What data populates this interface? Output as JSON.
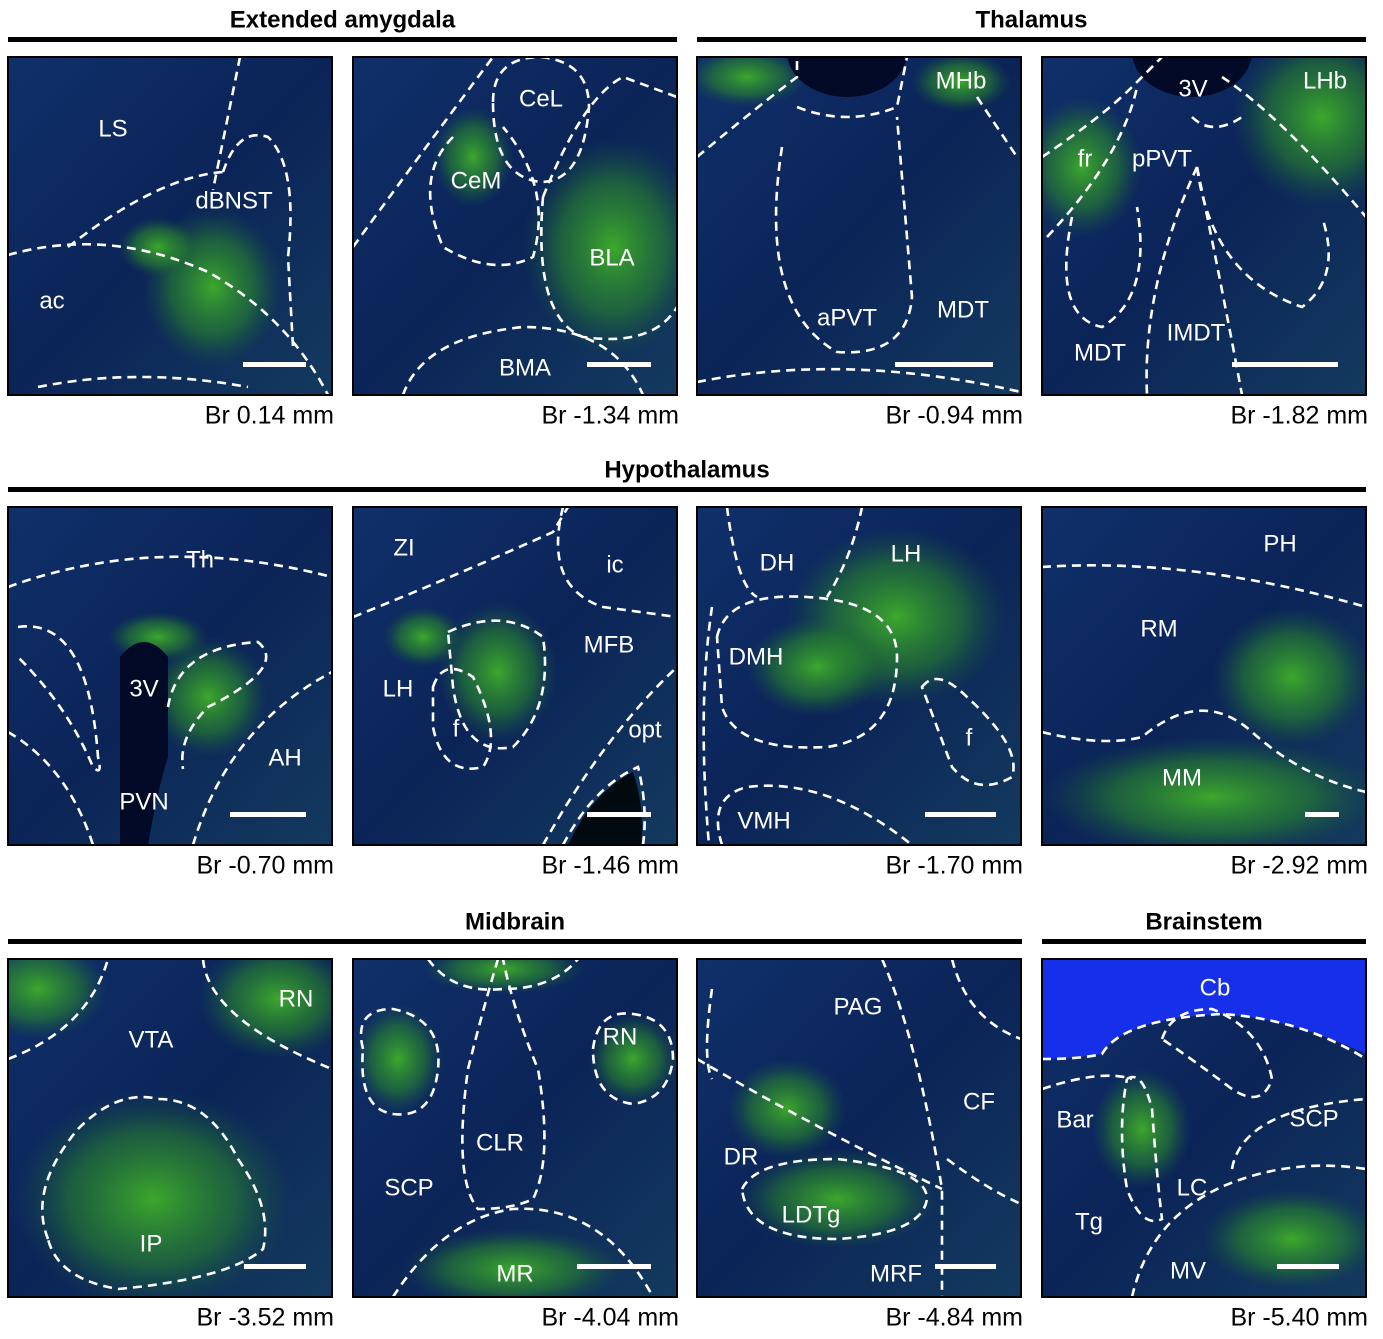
{
  "sections": [
    "Extended amygdala",
    "Thalamus",
    "Hypothalamus",
    "Midbrain",
    "Brainstem"
  ],
  "panels": [
    {
      "labels": [
        "LS",
        "dBNST",
        "ac"
      ],
      "caption": "Br 0.14 mm"
    },
    {
      "labels": [
        "CeL",
        "CeM",
        "BLA",
        "BMA"
      ],
      "caption": "Br -1.34 mm"
    },
    {
      "labels": [
        "MHb",
        "aPVT",
        "MDT"
      ],
      "caption": "Br -0.94 mm"
    },
    {
      "labels": [
        "3V",
        "LHb",
        "fr",
        "pPVT",
        "MDT",
        "IMDT"
      ],
      "caption": "Br -1.82 mm"
    },
    {
      "labels": [
        "Th",
        "3V",
        "AH",
        "PVN"
      ],
      "caption": "Br -0.70 mm"
    },
    {
      "labels": [
        "ZI",
        "ic",
        "MFB",
        "LH",
        "f",
        "opt"
      ],
      "caption": "Br -1.46 mm"
    },
    {
      "labels": [
        "DH",
        "LH",
        "DMH",
        "f",
        "VMH"
      ],
      "caption": "Br -1.70 mm"
    },
    {
      "labels": [
        "PH",
        "RM",
        "MM"
      ],
      "caption": "Br -2.92 mm"
    },
    {
      "labels": [
        "RN",
        "VTA",
        "IP"
      ],
      "caption": "Br -3.52 mm"
    },
    {
      "labels": [
        "RN",
        "CLR",
        "SCP",
        "MR"
      ],
      "caption": "Br -4.04 mm"
    },
    {
      "labels": [
        "PAG",
        "CF",
        "DR",
        "LDTg",
        "MRF"
      ],
      "caption": "Br -4.84 mm"
    },
    {
      "labels": [
        "Cb",
        "SCP",
        "Bar",
        "LC",
        "Tg",
        "MV"
      ],
      "caption": "Br -5.40 mm"
    }
  ]
}
